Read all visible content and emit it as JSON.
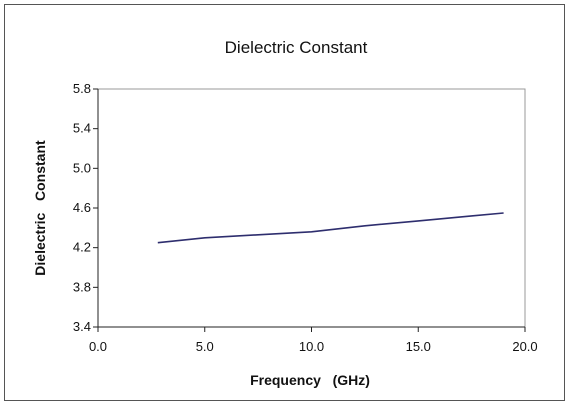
{
  "chart_data": {
    "type": "line",
    "title": "Dielectric Constant",
    "xlabel": "Frequency   (GHz)",
    "ylabel": "Dielectric   Constant",
    "xlim": [
      0,
      20
    ],
    "ylim": [
      3.4,
      5.8
    ],
    "x_ticks": [
      "0.0",
      "5.0",
      "10.0",
      "15.0",
      "20.0"
    ],
    "y_ticks": [
      "3.4",
      "3.8",
      "4.2",
      "4.6",
      "5.0",
      "5.4",
      "5.8"
    ],
    "grid": false,
    "series": [
      {
        "x": [
          2.8,
          5.0,
          7.5,
          10.0,
          12.5,
          15.0,
          17.5,
          19.0
        ],
        "y": [
          4.25,
          4.3,
          4.33,
          4.36,
          4.42,
          4.47,
          4.52,
          4.55
        ]
      }
    ],
    "line_color": "#2e2e6e"
  }
}
